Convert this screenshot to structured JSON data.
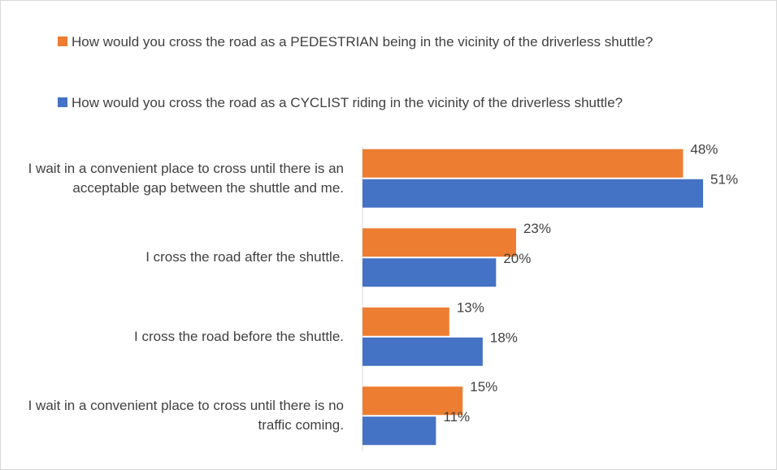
{
  "chart_data": {
    "type": "hbar",
    "categories": [
      "I wait in a convenient place to cross until there is an acceptable gap between the shuttle and me.",
      "I cross the road after the shuttle.",
      "I cross the road before the shuttle.",
      "I wait in a convenient place to cross until there is no traffic coming."
    ],
    "series": [
      {
        "name": "How would you cross the road as a PEDESTRIAN being in the vicinity of the driverless shuttle?",
        "color": "#ed7d31",
        "values": [
          48,
          23,
          13,
          15
        ],
        "value_labels": [
          "48%",
          "23%",
          "13%",
          "15%"
        ]
      },
      {
        "name": "How would you cross the road as a CYCLIST riding in the vicinity of the driverless shuttle?",
        "color": "#4472c4",
        "values": [
          51,
          20,
          18,
          11
        ],
        "value_labels": [
          "51%",
          "20%",
          "18%",
          "11%"
        ]
      }
    ],
    "xlim": [
      0,
      60
    ],
    "legend": "top"
  }
}
